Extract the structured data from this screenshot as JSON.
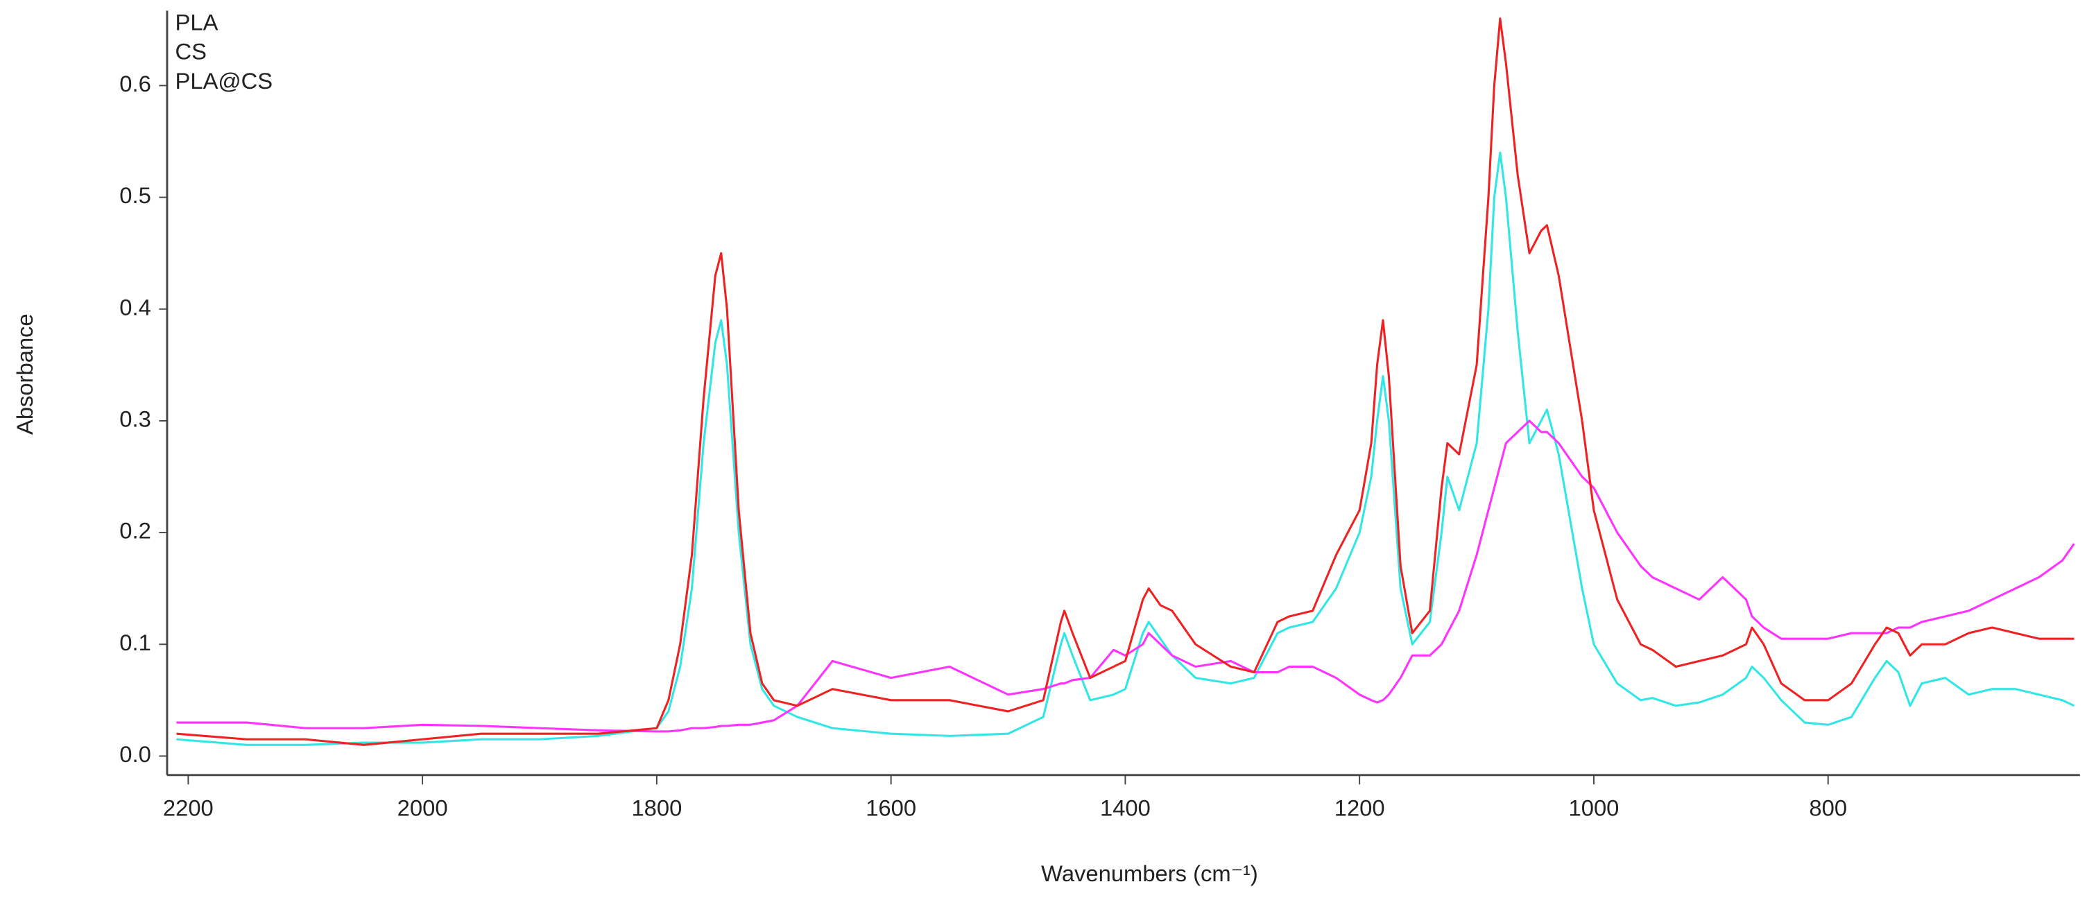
{
  "chart_data": {
    "type": "line",
    "xlabel": "Wavenumbers (cm⁻¹)",
    "ylabel": "Absorbance",
    "x": [
      2210,
      2150,
      2100,
      2050,
      2000,
      1950,
      1900,
      1850,
      1800,
      1790,
      1780,
      1770,
      1760,
      1750,
      1745,
      1740,
      1730,
      1720,
      1710,
      1700,
      1680,
      1650,
      1600,
      1550,
      1500,
      1470,
      1455,
      1452,
      1445,
      1430,
      1410,
      1400,
      1385,
      1380,
      1370,
      1360,
      1340,
      1310,
      1290,
      1270,
      1260,
      1240,
      1220,
      1200,
      1190,
      1185,
      1180,
      1175,
      1165,
      1155,
      1140,
      1130,
      1125,
      1115,
      1100,
      1090,
      1085,
      1080,
      1075,
      1065,
      1055,
      1045,
      1040,
      1030,
      1010,
      1000,
      980,
      960,
      950,
      930,
      910,
      890,
      870,
      865,
      855,
      840,
      820,
      800,
      780,
      760,
      750,
      740,
      730,
      720,
      700,
      680,
      660,
      640,
      620,
      600,
      590
    ],
    "series": [
      {
        "name": "PLA",
        "color": "#33e6e6",
        "values": [
          0.015,
          0.01,
          0.01,
          0.012,
          0.012,
          0.015,
          0.015,
          0.018,
          0.025,
          0.04,
          0.08,
          0.15,
          0.28,
          0.37,
          0.39,
          0.35,
          0.2,
          0.1,
          0.06,
          0.045,
          0.035,
          0.025,
          0.02,
          0.018,
          0.02,
          0.035,
          0.1,
          0.11,
          0.09,
          0.05,
          0.055,
          0.06,
          0.11,
          0.12,
          0.105,
          0.09,
          0.07,
          0.065,
          0.07,
          0.11,
          0.115,
          0.12,
          0.15,
          0.2,
          0.25,
          0.3,
          0.34,
          0.3,
          0.15,
          0.1,
          0.12,
          0.2,
          0.25,
          0.22,
          0.28,
          0.4,
          0.5,
          0.54,
          0.5,
          0.38,
          0.28,
          0.3,
          0.31,
          0.27,
          0.15,
          0.1,
          0.065,
          0.05,
          0.052,
          0.045,
          0.048,
          0.055,
          0.07,
          0.08,
          0.07,
          0.05,
          0.03,
          0.028,
          0.035,
          0.07,
          0.085,
          0.075,
          0.045,
          0.065,
          0.07,
          0.055,
          0.06,
          0.06,
          0.055,
          0.05,
          0.045
        ]
      },
      {
        "name": "CS",
        "color": "#ff33ff",
        "values": [
          0.03,
          0.03,
          0.025,
          0.025,
          0.028,
          0.027,
          0.025,
          0.023,
          0.022,
          0.022,
          0.023,
          0.025,
          0.025,
          0.026,
          0.027,
          0.027,
          0.028,
          0.028,
          0.03,
          0.032,
          0.045,
          0.085,
          0.07,
          0.08,
          0.055,
          0.06,
          0.065,
          0.065,
          0.068,
          0.07,
          0.095,
          0.09,
          0.1,
          0.11,
          0.1,
          0.09,
          0.08,
          0.085,
          0.075,
          0.075,
          0.08,
          0.08,
          0.07,
          0.055,
          0.05,
          0.048,
          0.05,
          0.055,
          0.07,
          0.09,
          0.09,
          0.1,
          0.11,
          0.13,
          0.18,
          0.22,
          0.24,
          0.26,
          0.28,
          0.29,
          0.3,
          0.29,
          0.29,
          0.28,
          0.25,
          0.24,
          0.2,
          0.17,
          0.16,
          0.15,
          0.14,
          0.16,
          0.14,
          0.125,
          0.115,
          0.105,
          0.105,
          0.105,
          0.11,
          0.11,
          0.11,
          0.115,
          0.115,
          0.12,
          0.125,
          0.13,
          0.14,
          0.15,
          0.16,
          0.175,
          0.19
        ]
      },
      {
        "name": "PLA@CS",
        "color": "#ee2222",
        "values": [
          0.02,
          0.015,
          0.015,
          0.01,
          0.015,
          0.02,
          0.02,
          0.02,
          0.025,
          0.05,
          0.1,
          0.18,
          0.32,
          0.43,
          0.45,
          0.4,
          0.22,
          0.11,
          0.065,
          0.05,
          0.045,
          0.06,
          0.05,
          0.05,
          0.04,
          0.05,
          0.12,
          0.13,
          0.11,
          0.07,
          0.08,
          0.085,
          0.14,
          0.15,
          0.135,
          0.13,
          0.1,
          0.08,
          0.075,
          0.12,
          0.125,
          0.13,
          0.18,
          0.22,
          0.28,
          0.35,
          0.39,
          0.34,
          0.17,
          0.11,
          0.13,
          0.24,
          0.28,
          0.27,
          0.35,
          0.5,
          0.6,
          0.66,
          0.62,
          0.52,
          0.45,
          0.47,
          0.475,
          0.43,
          0.3,
          0.22,
          0.14,
          0.1,
          0.095,
          0.08,
          0.085,
          0.09,
          0.1,
          0.115,
          0.1,
          0.065,
          0.05,
          0.05,
          0.065,
          0.1,
          0.115,
          0.11,
          0.09,
          0.1,
          0.1,
          0.11,
          0.115,
          0.11,
          0.105,
          0.105,
          0.105
        ]
      }
    ],
    "xlim": [
      2218,
      585
    ],
    "xticks": [
      2200,
      2000,
      1800,
      1600,
      1400,
      1200,
      1000,
      800
    ],
    "ylim": [
      -0.017,
      0.667
    ],
    "yticks": [
      {
        "value": 0,
        "label": "0.0"
      },
      0.1,
      0.2,
      0.3,
      0.4,
      0.5,
      0.6
    ],
    "legend": "upper-left"
  }
}
